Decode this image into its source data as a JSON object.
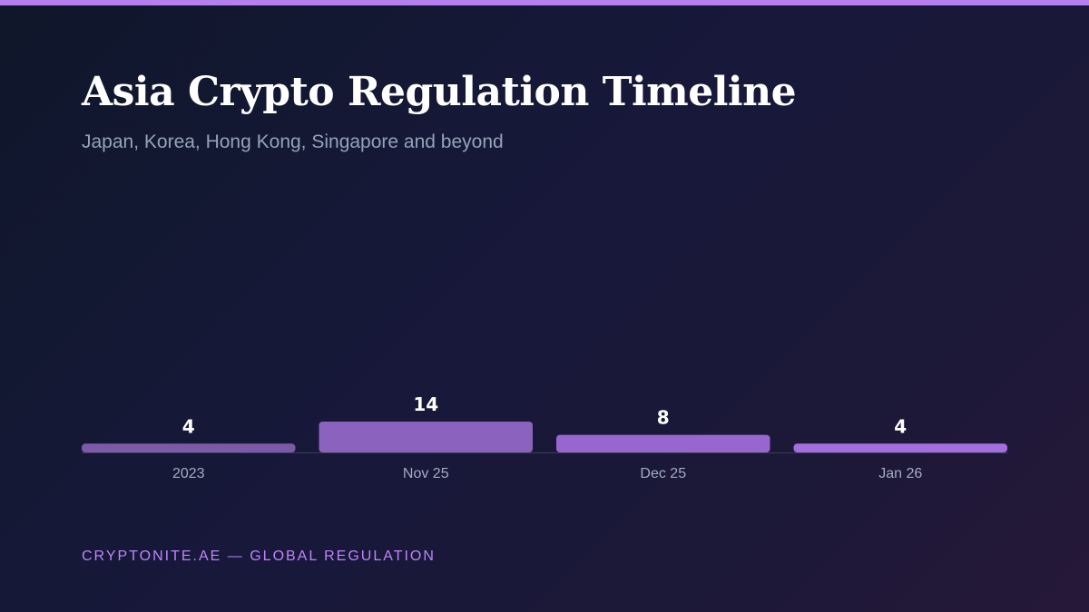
{
  "header": {
    "title": "Asia Crypto Regulation Timeline",
    "subtitle": "Japan, Korea, Hong Kong, Singapore and beyond"
  },
  "footer": {
    "text": "CRYPTONITE.AE — GLOBAL REGULATION"
  },
  "colors": {
    "accent": "#b57ff0",
    "footer_text": "#c084fc",
    "bar_colors": [
      "#7c5aa8",
      "#8b62bd",
      "#9767cf",
      "#a46ee0"
    ],
    "baseline": "#3a3f55",
    "value_label": "#ffffff",
    "tick_label": "#a3acc0"
  },
  "chart_data": {
    "type": "bar",
    "categories": [
      "2023",
      "Nov 25",
      "Dec 25",
      "Jan 26"
    ],
    "values": [
      4,
      14,
      8,
      4
    ],
    "ylim": [
      0,
      14
    ],
    "grid": false,
    "legend": "none",
    "data_labels": true
  }
}
